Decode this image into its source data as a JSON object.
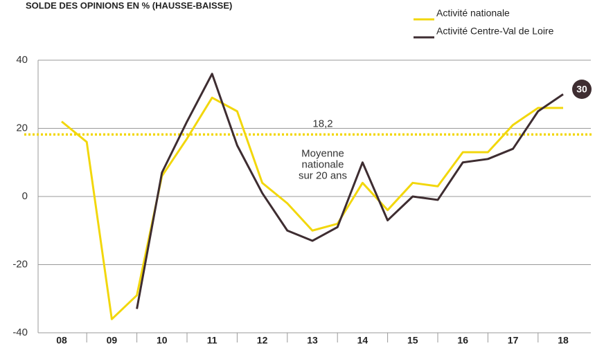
{
  "chart_data": {
    "type": "line",
    "title": "SOLDE DES OPINIONS EN % (HAUSSE-BAISSE)",
    "categories": [
      "08",
      null,
      "09",
      null,
      "10",
      null,
      "11",
      null,
      "12",
      null,
      "13",
      null,
      "14",
      null,
      "15",
      null,
      "16",
      null,
      "17",
      null,
      "18"
    ],
    "series": [
      {
        "name": "Activité nationale",
        "color": "#f2d70c",
        "values": [
          22,
          16,
          -36,
          -29,
          6,
          17,
          29,
          25,
          4,
          -2,
          -10,
          -8,
          4,
          -4,
          4,
          3,
          13,
          13,
          21,
          26,
          26
        ]
      },
      {
        "name": "Activité Centre-Val de Loire",
        "color": "#3e2d31",
        "values": [
          null,
          null,
          null,
          -33,
          7,
          22,
          36,
          15,
          1,
          -10,
          -13,
          -9,
          10,
          -7,
          0,
          -1,
          10,
          11,
          14,
          25,
          30
        ]
      }
    ],
    "reference_line": {
      "value": 18.2,
      "label": "18,2",
      "text": [
        "Moyenne",
        "nationale",
        "sur 20 ans"
      ],
      "color": "#f2d70c"
    },
    "ylim": [
      -40,
      40
    ],
    "yticks": [
      -40,
      -20,
      0,
      20,
      40
    ],
    "grid": true
  }
}
